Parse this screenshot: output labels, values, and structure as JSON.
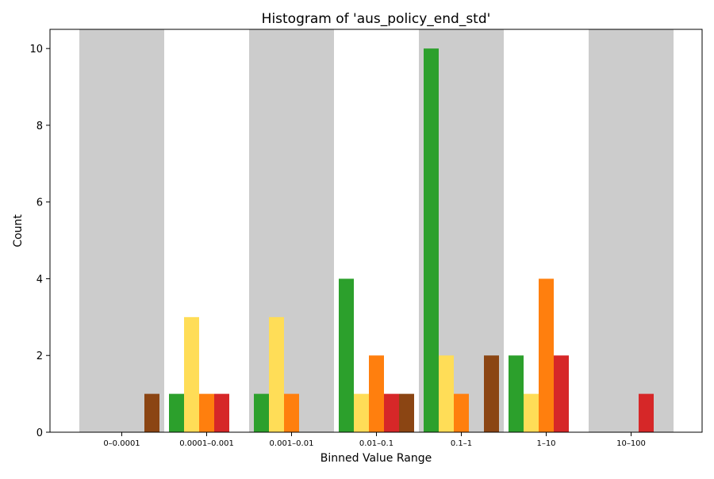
{
  "chart_data": {
    "type": "bar",
    "title": "Histogram of 'aus_policy_end_std'",
    "xlabel": "Binned Value Range",
    "ylabel": "Count",
    "categories": [
      "0–0.0001",
      "0.0001–0.001",
      "0.001–0.01",
      "0.01–0.1",
      "0.1–1",
      "1–10",
      "10–100"
    ],
    "ylim": [
      0,
      10.5
    ],
    "yticks": [
      0,
      2,
      4,
      6,
      8,
      10
    ],
    "grid": false,
    "legend": "none",
    "shaded_bins": [
      0,
      2,
      4,
      6
    ],
    "shade_color": "#cccccc",
    "series": [
      {
        "color": "#2ca02c",
        "values": [
          0,
          1,
          1,
          4,
          10,
          2,
          0
        ]
      },
      {
        "color": "#ffdd57",
        "values": [
          0,
          3,
          3,
          1,
          2,
          1,
          0
        ]
      },
      {
        "color": "#ff7f0e",
        "values": [
          0,
          1,
          1,
          2,
          1,
          4,
          0
        ]
      },
      {
        "color": "#d62728",
        "values": [
          0,
          1,
          0,
          1,
          0,
          2,
          1
        ]
      },
      {
        "color": "#8b4513",
        "values": [
          1,
          0,
          0,
          1,
          2,
          0,
          0
        ]
      }
    ]
  }
}
